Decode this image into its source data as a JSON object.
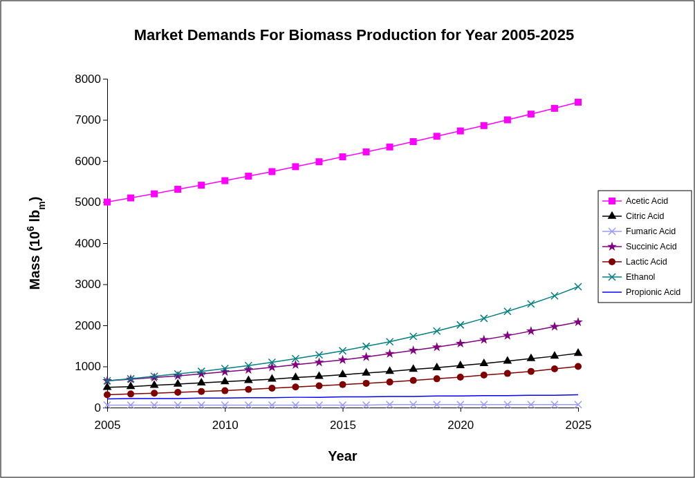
{
  "chart_data": {
    "type": "line",
    "title": "Market Demands For Biomass Production for Year 2005-2025",
    "xlabel": "Year",
    "ylabel": "Mass (10$^{6}$ lb$_{m}$)",
    "x": [
      2005,
      2006,
      2007,
      2008,
      2009,
      2010,
      2011,
      2012,
      2013,
      2014,
      2015,
      2016,
      2017,
      2018,
      2019,
      2020,
      2021,
      2022,
      2023,
      2024,
      2025
    ],
    "xlim": [
      2005,
      2025
    ],
    "xticks": [
      2005,
      2010,
      2015,
      2020,
      2025
    ],
    "ylim": [
      0,
      8000
    ],
    "yticks": [
      0,
      1000,
      2000,
      3000,
      4000,
      5000,
      6000,
      7000,
      8000
    ],
    "grid": false,
    "legend": "right",
    "line_style": "solid",
    "series": [
      {
        "name": "Acetic Acid",
        "color": "#ff00ff",
        "marker": "square",
        "values": [
          5000,
          5100,
          5200,
          5310,
          5410,
          5520,
          5630,
          5740,
          5860,
          5980,
          6100,
          6220,
          6340,
          6470,
          6600,
          6730,
          6860,
          7000,
          7140,
          7280,
          7430
        ]
      },
      {
        "name": "Citric Acid",
        "color": "#000000",
        "marker": "triangle",
        "values": [
          490,
          510,
          540,
          570,
          600,
          630,
          660,
          690,
          730,
          760,
          800,
          840,
          880,
          930,
          970,
          1020,
          1070,
          1130,
          1190,
          1250,
          1320
        ]
      },
      {
        "name": "Fumaric Acid",
        "color": "#9999ff",
        "marker": "cross",
        "values": [
          60,
          60,
          60,
          60,
          60,
          60,
          60,
          60,
          60,
          60,
          60,
          60,
          70,
          70,
          70,
          70,
          70,
          70,
          70,
          70,
          70
        ]
      },
      {
        "name": "Succinic Acid",
        "color": "#800080",
        "marker": "star",
        "values": [
          650,
          690,
          730,
          770,
          820,
          870,
          920,
          980,
          1040,
          1100,
          1160,
          1230,
          1310,
          1390,
          1470,
          1560,
          1650,
          1750,
          1860,
          1970,
          2080
        ]
      },
      {
        "name": "Lactic Acid",
        "color": "#800000",
        "marker": "circle",
        "values": [
          310,
          330,
          350,
          370,
          390,
          410,
          440,
          470,
          500,
          530,
          560,
          590,
          620,
          660,
          700,
          740,
          790,
          830,
          880,
          940,
          1000
        ]
      },
      {
        "name": "Ethanol",
        "color": "#008080",
        "marker": "cross",
        "values": [
          650,
          700,
          760,
          820,
          880,
          950,
          1020,
          1100,
          1190,
          1280,
          1380,
          1490,
          1600,
          1730,
          1860,
          2010,
          2170,
          2340,
          2520,
          2720,
          2940
        ]
      },
      {
        "name": "Propionic Acid",
        "color": "#0000ff",
        "marker": "none",
        "values": [
          210,
          220,
          220,
          220,
          230,
          230,
          240,
          240,
          250,
          250,
          260,
          260,
          270,
          270,
          280,
          280,
          290,
          290,
          300,
          300,
          310
        ]
      }
    ]
  }
}
